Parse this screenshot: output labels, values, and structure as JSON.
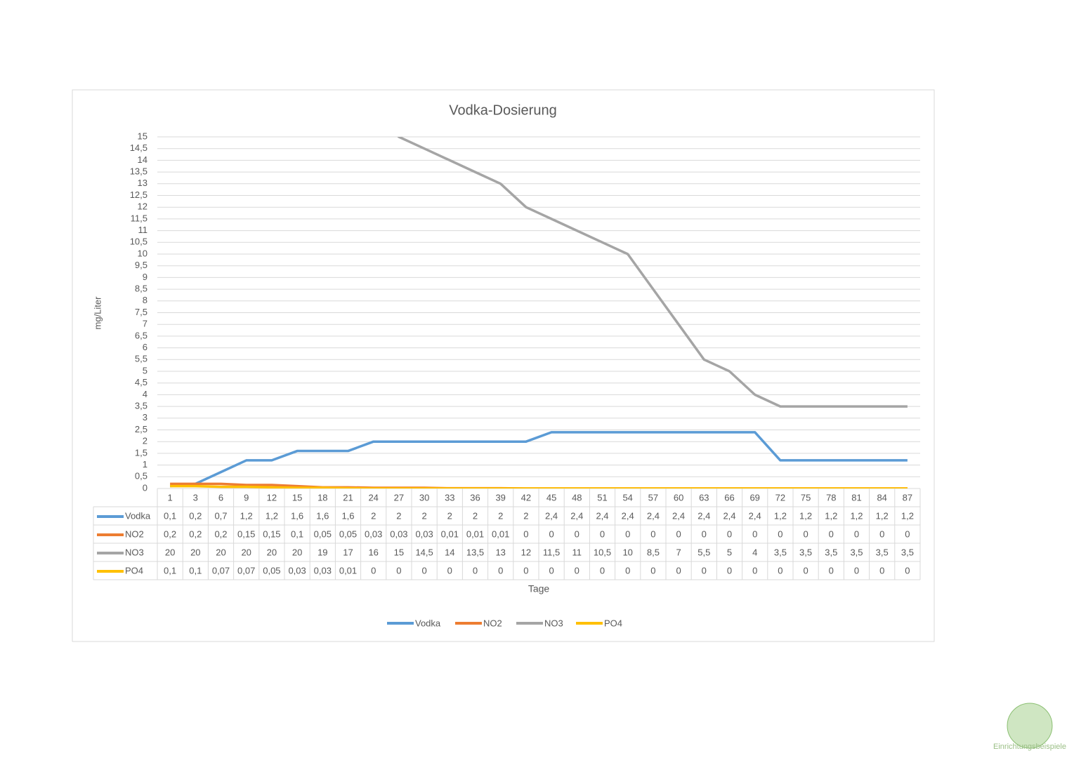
{
  "chart_data": {
    "type": "line",
    "title": "Vodka-Dosierung",
    "ylabel": "mg/Liter",
    "xlabel": "Tage",
    "categories": [
      "1",
      "3",
      "6",
      "9",
      "12",
      "15",
      "18",
      "21",
      "24",
      "27",
      "30",
      "33",
      "36",
      "39",
      "42",
      "45",
      "48",
      "51",
      "54",
      "57",
      "60",
      "63",
      "66",
      "69",
      "72",
      "75",
      "78",
      "81",
      "84",
      "87"
    ],
    "series": [
      {
        "name": "Vodka",
        "color": "#5b9bd5",
        "values": [
          0.1,
          0.2,
          0.7,
          1.2,
          1.2,
          1.6,
          1.6,
          1.6,
          2,
          2,
          2,
          2,
          2,
          2,
          2,
          2.4,
          2.4,
          2.4,
          2.4,
          2.4,
          2.4,
          2.4,
          2.4,
          2.4,
          1.2,
          1.2,
          1.2,
          1.2,
          1.2,
          1.2
        ],
        "value_labels": [
          "0,1",
          "0,2",
          "0,7",
          "1,2",
          "1,2",
          "1,6",
          "1,6",
          "1,6",
          "2",
          "2",
          "2",
          "2",
          "2",
          "2",
          "2",
          "2,4",
          "2,4",
          "2,4",
          "2,4",
          "2,4",
          "2,4",
          "2,4",
          "2,4",
          "2,4",
          "1,2",
          "1,2",
          "1,2",
          "1,2",
          "1,2",
          "1,2"
        ]
      },
      {
        "name": "NO2",
        "color": "#ed7d31",
        "values": [
          0.2,
          0.2,
          0.2,
          0.15,
          0.15,
          0.1,
          0.05,
          0.05,
          0.03,
          0.03,
          0.03,
          0.01,
          0.01,
          0.01,
          0,
          0,
          0,
          0,
          0,
          0,
          0,
          0,
          0,
          0,
          0,
          0,
          0,
          0,
          0,
          0
        ],
        "value_labels": [
          "0,2",
          "0,2",
          "0,2",
          "0,15",
          "0,15",
          "0,1",
          "0,05",
          "0,05",
          "0,03",
          "0,03",
          "0,03",
          "0,01",
          "0,01",
          "0,01",
          "0",
          "0",
          "0",
          "0",
          "0",
          "0",
          "0",
          "0",
          "0",
          "0",
          "0",
          "0",
          "0",
          "0",
          "0",
          "0"
        ]
      },
      {
        "name": "NO3",
        "color": "#a5a5a5",
        "values": [
          20,
          20,
          20,
          20,
          20,
          20,
          19,
          17,
          16,
          15,
          14.5,
          14,
          13.5,
          13,
          12,
          11.5,
          11,
          10.5,
          10,
          8.5,
          7,
          5.5,
          5,
          4,
          3.5,
          3.5,
          3.5,
          3.5,
          3.5,
          3.5
        ],
        "value_labels": [
          "20",
          "20",
          "20",
          "20",
          "20",
          "20",
          "19",
          "17",
          "16",
          "15",
          "14,5",
          "14",
          "13,5",
          "13",
          "12",
          "11,5",
          "11",
          "10,5",
          "10",
          "8,5",
          "7",
          "5,5",
          "5",
          "4",
          "3,5",
          "3,5",
          "3,5",
          "3,5",
          "3,5",
          "3,5"
        ]
      },
      {
        "name": "PO4",
        "color": "#ffc000",
        "values": [
          0.1,
          0.1,
          0.07,
          0.07,
          0.05,
          0.03,
          0.03,
          0.01,
          0,
          0,
          0,
          0,
          0,
          0,
          0,
          0,
          0,
          0,
          0,
          0,
          0,
          0,
          0,
          0,
          0,
          0,
          0,
          0,
          0,
          0
        ],
        "value_labels": [
          "0,1",
          "0,1",
          "0,07",
          "0,07",
          "0,05",
          "0,03",
          "0,03",
          "0,01",
          "0",
          "0",
          "0",
          "0",
          "0",
          "0",
          "0",
          "0",
          "0",
          "0",
          "0",
          "0",
          "0",
          "0",
          "0",
          "0",
          "0",
          "0",
          "0",
          "0",
          "0",
          "0"
        ]
      }
    ],
    "ylim": [
      0,
      15
    ],
    "yticks": [
      0,
      {
        "value": 0.5,
        "label": "0,5"
      },
      1,
      {
        "value": 1.5,
        "label": "1,5"
      },
      2,
      {
        "value": 2.5,
        "label": "2,5"
      },
      3,
      {
        "value": 3.5,
        "label": "3,5"
      },
      4,
      {
        "value": 4.5,
        "label": "4,5"
      },
      5,
      {
        "value": 5.5,
        "label": "5,5"
      },
      6,
      {
        "value": 6.5,
        "label": "6,5"
      },
      7,
      {
        "value": 7.5,
        "label": "7,5"
      },
      8,
      {
        "value": 8.5,
        "label": "8,5"
      },
      9,
      {
        "value": 9.5,
        "label": "9,5"
      },
      10,
      {
        "value": 10.5,
        "label": "10,5"
      },
      11,
      {
        "value": 11.5,
        "label": "11,5"
      },
      12,
      {
        "value": 12.5,
        "label": "12,5"
      },
      13,
      {
        "value": 13.5,
        "label": "13,5"
      },
      14,
      {
        "value": 14.5,
        "label": "14,5"
      },
      15
    ],
    "grid": true,
    "legend": "bottom"
  },
  "watermark": "Einrichtungsbeispiele"
}
